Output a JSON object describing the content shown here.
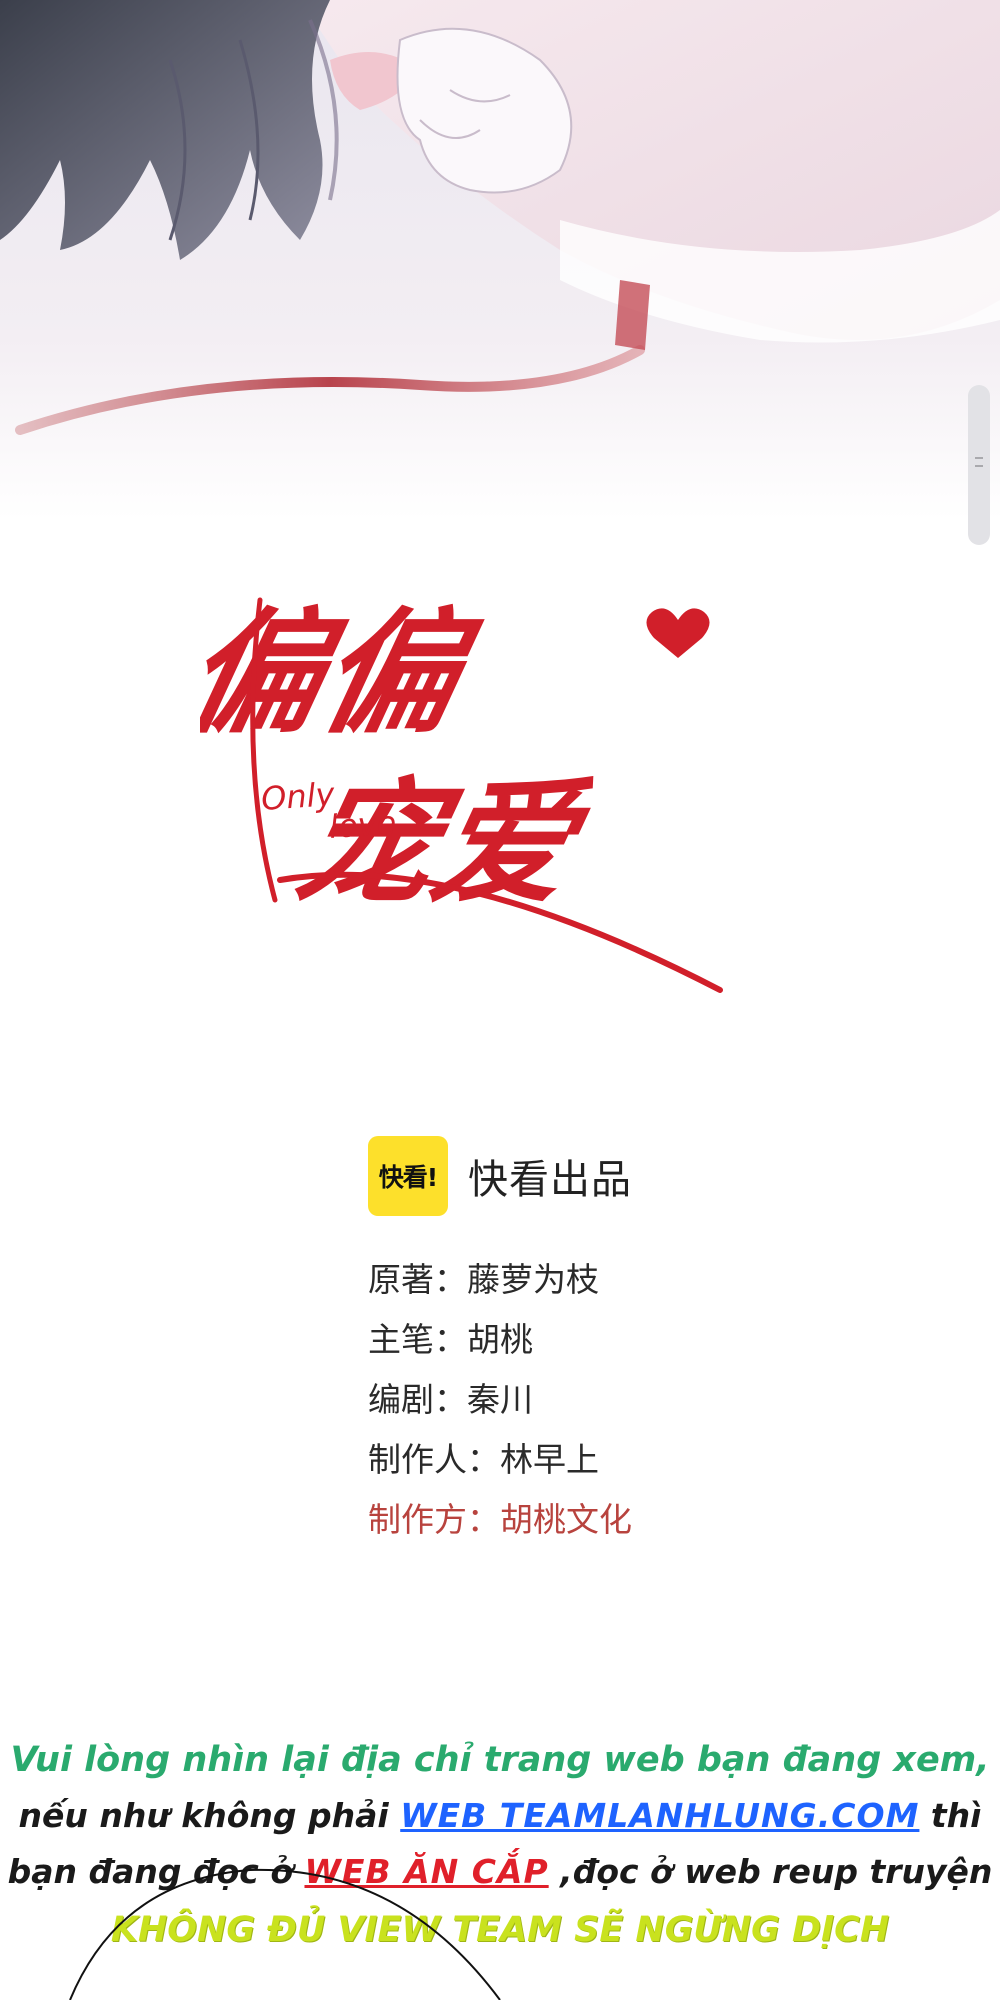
{
  "logo": {
    "title_cn": "偏偏宠爱",
    "subtitle_en_1": "Only",
    "subtitle_en_2": "love"
  },
  "publisher": {
    "badge": "快看!",
    "text": "快看出品"
  },
  "credits": [
    {
      "label": "原著：",
      "value": "藤萝为枝"
    },
    {
      "label": "主笔：",
      "value": "胡桃"
    },
    {
      "label": "编剧：",
      "value": "秦川"
    },
    {
      "label": "制作人：",
      "value": "林早上"
    },
    {
      "label": "制作方：",
      "value": "胡桃文化"
    }
  ],
  "notice": {
    "line1": "Vui lòng nhìn lại địa chỉ trang web bạn đang xem,",
    "line2_pre": "nếu như không phải ",
    "line2_site": "WEB TEAMLANHLUNG.COM",
    "line2_post": " thì",
    "line3_pre": "bạn đang đọc ở ",
    "line3_steal": "WEB ĂN CẮP",
    "line3_post": " ,đọc ở web reup truyện",
    "line4": "KHÔNG ĐỦ VIEW TEAM SẼ NGỪNG DỊCH"
  },
  "colors": {
    "logo_red": "#d11f2a",
    "badge_yellow": "#fde02b",
    "credit_red": "#b8433e",
    "notice_green": "#2aaa6e",
    "notice_blue": "#1e63ff",
    "notice_yellowgreen": "#c9e21e"
  }
}
